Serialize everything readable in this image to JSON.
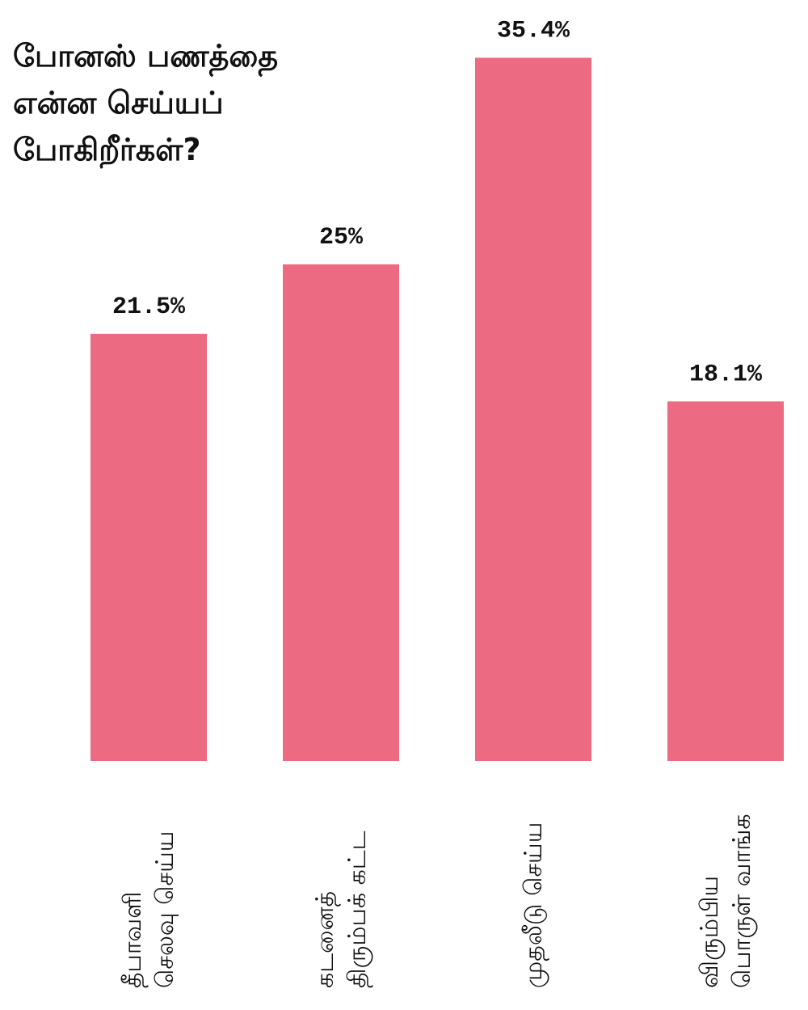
{
  "chart_data": {
    "type": "bar",
    "title": "போனஸ் பணத்தை என்ன செய்யப் போகிறீர்கள்?",
    "categories": [
      [
        "தீபாவளி",
        "செலவு செய்ய"
      ],
      [
        "கடனைத்",
        "திரும்பக் கட்ட"
      ],
      [
        "முதலீடு செய்ய"
      ],
      [
        "விரும்பிய",
        "பொருள் வாங்க"
      ]
    ],
    "values": [
      21.5,
      25,
      35.4,
      18.1
    ],
    "value_labels": [
      "21.5%",
      "25%",
      "35.4%",
      "18.1%"
    ],
    "ylim": [
      0,
      37.9
    ],
    "grid": false,
    "bar_color": "#ec6a82"
  }
}
